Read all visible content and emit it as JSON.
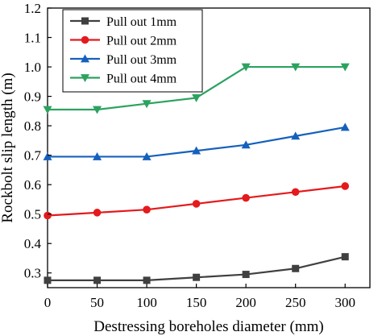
{
  "chart_data": {
    "type": "line",
    "title": "",
    "xlabel": "Destressing boreholes diameter (mm)",
    "ylabel": "Rockbolt slip length (m)",
    "xlim": [
      0,
      325
    ],
    "ylim": [
      0.25,
      1.2
    ],
    "x": [
      0,
      50,
      100,
      150,
      200,
      250,
      300
    ],
    "xticks": [
      "0",
      "50",
      "100",
      "150",
      "200",
      "250",
      "300"
    ],
    "yticks": [
      "0.3",
      "0.4",
      "0.5",
      "0.6",
      "0.7",
      "0.8",
      "0.9",
      "1.0",
      "1.1",
      "1.2"
    ],
    "legend_position": "top-left",
    "grid": false,
    "series": [
      {
        "name": "Pull out 1mm",
        "color": "#404040",
        "marker": "square",
        "values": [
          0.275,
          0.275,
          0.275,
          0.285,
          0.295,
          0.315,
          0.355
        ]
      },
      {
        "name": "Pull out 2mm",
        "color": "#e41a1c",
        "marker": "circle",
        "values": [
          0.495,
          0.505,
          0.515,
          0.535,
          0.555,
          0.575,
          0.595
        ]
      },
      {
        "name": "Pull out 3mm",
        "color": "#1560bd",
        "marker": "triangle-up",
        "values": [
          0.695,
          0.695,
          0.695,
          0.715,
          0.735,
          0.765,
          0.795
        ]
      },
      {
        "name": "Pull out 4mm",
        "color": "#2ca25f",
        "marker": "triangle-down",
        "values": [
          0.855,
          0.855,
          0.875,
          0.895,
          1.0,
          1.0,
          1.0
        ]
      }
    ]
  }
}
